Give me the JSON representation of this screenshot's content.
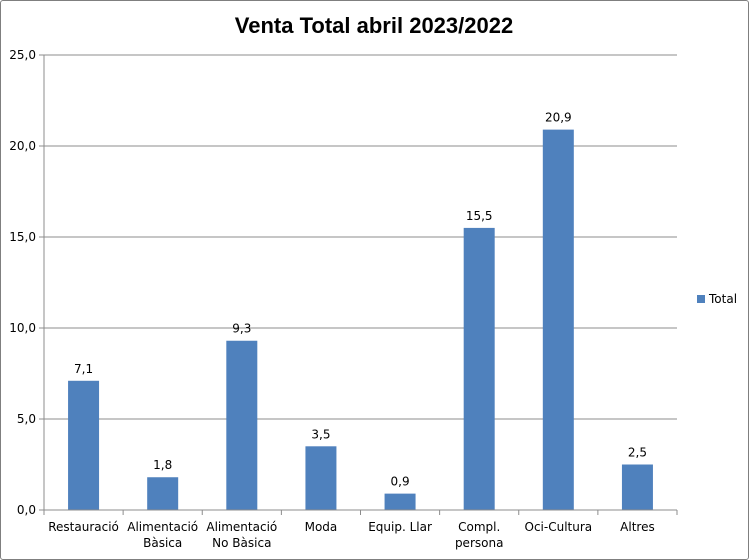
{
  "chart_data": {
    "type": "bar",
    "title": "Venta Total abril 2023/2022",
    "categories": [
      [
        "Restauració"
      ],
      [
        "Alimentació",
        "Bàsica"
      ],
      [
        "Alimentació",
        "No Bàsica"
      ],
      [
        "Moda"
      ],
      [
        "Equip. Llar"
      ],
      [
        "Compl.",
        "persona"
      ],
      [
        "Oci-Cultura"
      ],
      [
        "Altres"
      ]
    ],
    "series": [
      {
        "name": "Total",
        "values": [
          7.1,
          1.8,
          9.3,
          3.5,
          0.9,
          15.5,
          20.9,
          2.5
        ],
        "color": "#4f81bd"
      }
    ],
    "data_labels": [
      "7,1",
      "1,8",
      "9,3",
      "3,5",
      "0,9",
      "15,5",
      "20,9",
      "2,5"
    ],
    "ylim": [
      0,
      25
    ],
    "yticks": [
      0,
      5,
      10,
      15,
      20,
      25
    ],
    "ytick_labels": [
      "0,0",
      "5,0",
      "10,0",
      "15,0",
      "20,0",
      "25,0"
    ],
    "grid": true,
    "legend_position": "right"
  }
}
